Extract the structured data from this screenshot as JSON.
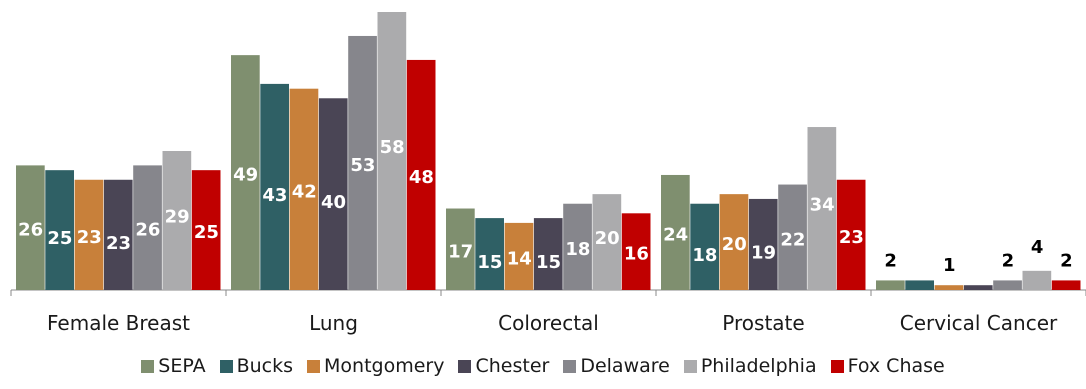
{
  "chart_data": {
    "type": "bar",
    "categories": [
      "Female Breast",
      "Lung",
      "Colorectal",
      "Prostate",
      "Cervical Cancer"
    ],
    "series": [
      {
        "name": "SEPA",
        "color": "#7f8f6f",
        "values": [
          26,
          49,
          17,
          24,
          2
        ]
      },
      {
        "name": "Bucks",
        "color": "#2f6065",
        "values": [
          25,
          43,
          15,
          18,
          2
        ]
      },
      {
        "name": "Montgomery",
        "color": "#c8803a",
        "values": [
          23,
          42,
          14,
          20,
          1
        ]
      },
      {
        "name": "Chester",
        "color": "#4a4555",
        "values": [
          23,
          40,
          15,
          19,
          1
        ]
      },
      {
        "name": "Delaware",
        "color": "#86868c",
        "values": [
          26,
          53,
          18,
          22,
          2
        ]
      },
      {
        "name": "Philadelphia",
        "color": "#ababad",
        "values": [
          29,
          58,
          20,
          34,
          4
        ]
      },
      {
        "name": "Fox Chase",
        "color": "#c00000",
        "values": [
          25,
          48,
          16,
          23,
          2
        ]
      }
    ],
    "data_labels": [
      [
        "26",
        "25",
        "23",
        "23",
        "26",
        "29",
        "25"
      ],
      [
        "49",
        "43",
        "42",
        "40",
        "53",
        "58",
        "48"
      ],
      [
        "17",
        "15",
        "14",
        "15",
        "18",
        "20",
        "16"
      ],
      [
        "24",
        "18",
        "20",
        "19",
        "22",
        "34",
        "23"
      ],
      [
        "2",
        "",
        "1",
        "",
        "2",
        "4",
        "2"
      ]
    ],
    "ylim": [
      0,
      58
    ],
    "legend_position": "bottom",
    "grid": false
  }
}
